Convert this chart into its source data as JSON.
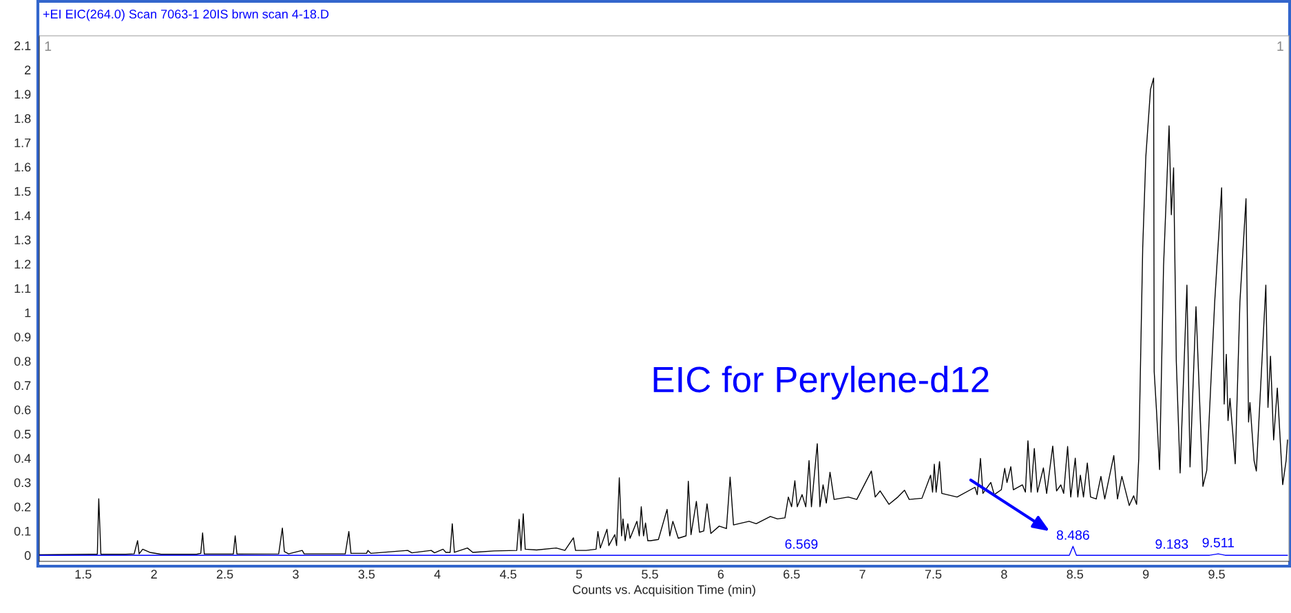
{
  "chart_data": {
    "type": "line",
    "title": "+EI EIC(264.0) Scan 7063-1 20IS brwn scan 4-18.D",
    "xlabel": "Counts vs. Acquisition Time (min)",
    "xlim": [
      1.19,
      10.01
    ],
    "xticks": [
      1.5,
      2,
      2.5,
      3,
      3.5,
      4,
      4.5,
      5,
      5.5,
      6,
      6.5,
      7,
      7.5,
      8,
      8.5,
      9,
      9.5
    ],
    "ylim": [
      -0.025,
      2.14
    ],
    "yticks": [
      0,
      0.1,
      0.2,
      0.3,
      0.4,
      0.5,
      0.6,
      0.7,
      0.8,
      0.9,
      1,
      1.1,
      1.2,
      1.3,
      1.4,
      1.5,
      1.6,
      1.7,
      1.8,
      1.9,
      2,
      2.1
    ],
    "grid": false,
    "legend": false,
    "marker": "none",
    "line_style": "solid",
    "series": [
      {
        "color": "#000000",
        "x": [
          1.19,
          1.55,
          1.6,
          1.61,
          1.625,
          1.8,
          1.86,
          1.884,
          1.895,
          1.92,
          1.97,
          2.05,
          2.3,
          2.33,
          2.343,
          2.355,
          2.56,
          2.573,
          2.585,
          2.88,
          2.906,
          2.92,
          2.95,
          3.046,
          3.06,
          3.35,
          3.375,
          3.39,
          3.5,
          3.51,
          3.53,
          3.79,
          3.82,
          3.956,
          3.98,
          4.04,
          4.06,
          4.09,
          4.105,
          4.12,
          4.212,
          4.25,
          4.4,
          4.56,
          4.577,
          4.59,
          4.606,
          4.62,
          4.7,
          4.839,
          4.9,
          4.96,
          4.975,
          5.05,
          5.12,
          5.133,
          5.15,
          5.197,
          5.21,
          5.252,
          5.265,
          5.284,
          5.3,
          5.31,
          5.325,
          5.344,
          5.36,
          5.408,
          5.425,
          5.439,
          5.455,
          5.469,
          5.485,
          5.505,
          5.56,
          5.621,
          5.64,
          5.662,
          5.7,
          5.755,
          5.771,
          5.79,
          5.828,
          5.85,
          5.88,
          5.903,
          5.93,
          5.989,
          6.04,
          6.066,
          6.09,
          6.2,
          6.25,
          6.35,
          6.4,
          6.453,
          6.477,
          6.5,
          6.523,
          6.54,
          6.574,
          6.6,
          6.623,
          6.64,
          6.681,
          6.7,
          6.722,
          6.745,
          6.771,
          6.8,
          6.9,
          6.96,
          7.063,
          7.09,
          7.125,
          7.187,
          7.25,
          7.297,
          7.33,
          7.42,
          7.481,
          7.495,
          7.507,
          7.52,
          7.544,
          7.56,
          7.668,
          7.794,
          7.81,
          7.833,
          7.85,
          7.906,
          7.93,
          7.98,
          8.004,
          8.02,
          8.047,
          8.065,
          8.129,
          8.15,
          8.168,
          8.19,
          8.213,
          8.235,
          8.277,
          8.3,
          8.343,
          8.37,
          8.4,
          8.42,
          8.448,
          8.47,
          8.502,
          8.52,
          8.538,
          8.56,
          8.587,
          8.61,
          8.65,
          8.683,
          8.71,
          8.774,
          8.8,
          8.831,
          8.883,
          8.914,
          8.935,
          8.95,
          8.978,
          9.0,
          9.033,
          9.055,
          9.059,
          9.075,
          9.097,
          9.125,
          9.164,
          9.18,
          9.196,
          9.215,
          9.242,
          9.29,
          9.312,
          9.354,
          9.403,
          9.43,
          9.486,
          9.535,
          9.553,
          9.568,
          9.58,
          9.594,
          9.631,
          9.664,
          9.707,
          9.725,
          9.735,
          9.764,
          9.78,
          9.847,
          9.862,
          9.88,
          9.902,
          9.928,
          9.966,
          9.99,
          10.0
        ],
        "values": [
          0.002,
          0.004,
          0.004,
          0.233,
          0.004,
          0.004,
          0.006,
          0.06,
          0.006,
          0.025,
          0.012,
          0.004,
          0.004,
          0.008,
          0.092,
          0.005,
          0.005,
          0.08,
          0.005,
          0.006,
          0.112,
          0.015,
          0.006,
          0.02,
          0.006,
          0.006,
          0.098,
          0.008,
          0.008,
          0.02,
          0.008,
          0.02,
          0.01,
          0.02,
          0.01,
          0.025,
          0.012,
          0.012,
          0.13,
          0.012,
          0.03,
          0.012,
          0.018,
          0.02,
          0.148,
          0.02,
          0.171,
          0.025,
          0.022,
          0.03,
          0.02,
          0.072,
          0.02,
          0.02,
          0.025,
          0.098,
          0.03,
          0.107,
          0.04,
          0.085,
          0.04,
          0.319,
          0.08,
          0.15,
          0.06,
          0.13,
          0.07,
          0.14,
          0.08,
          0.2,
          0.08,
          0.133,
          0.06,
          0.06,
          0.065,
          0.189,
          0.08,
          0.14,
          0.07,
          0.08,
          0.305,
          0.085,
          0.222,
          0.095,
          0.1,
          0.212,
          0.09,
          0.12,
          0.11,
          0.322,
          0.125,
          0.14,
          0.13,
          0.16,
          0.15,
          0.154,
          0.24,
          0.2,
          0.307,
          0.2,
          0.25,
          0.2,
          0.39,
          0.2,
          0.46,
          0.2,
          0.29,
          0.215,
          0.342,
          0.23,
          0.24,
          0.23,
          0.347,
          0.24,
          0.265,
          0.21,
          0.24,
          0.268,
          0.23,
          0.235,
          0.33,
          0.26,
          0.375,
          0.26,
          0.386,
          0.255,
          0.24,
          0.28,
          0.25,
          0.399,
          0.255,
          0.3,
          0.25,
          0.27,
          0.358,
          0.3,
          0.365,
          0.27,
          0.29,
          0.26,
          0.472,
          0.26,
          0.44,
          0.26,
          0.36,
          0.255,
          0.45,
          0.265,
          0.29,
          0.255,
          0.448,
          0.24,
          0.4,
          0.24,
          0.33,
          0.24,
          0.38,
          0.24,
          0.232,
          0.325,
          0.232,
          0.411,
          0.232,
          0.325,
          0.205,
          0.245,
          0.21,
          0.4,
          1.267,
          1.642,
          1.919,
          1.966,
          0.757,
          0.6,
          0.353,
          1.19,
          1.769,
          1.403,
          1.596,
          0.8,
          0.339,
          1.113,
          0.364,
          1.024,
          0.284,
          0.35,
          1.043,
          1.514,
          0.623,
          0.828,
          0.555,
          0.646,
          0.377,
          1.043,
          1.469,
          0.549,
          0.629,
          0.39,
          0.347,
          1.113,
          0.609,
          0.82,
          0.475,
          0.689,
          0.291,
          0.39,
          0.475
        ]
      },
      {
        "color": "#0000ff",
        "x": [
          1.19,
          8.46,
          8.486,
          8.51,
          9.45,
          9.511,
          9.56,
          10.0
        ],
        "values": [
          0,
          0,
          0.037,
          0,
          0,
          0.006,
          0,
          0
        ]
      }
    ],
    "annotations": [
      "EIC for Perylene-d12",
      {
        "text": "6.569",
        "x": 6.569,
        "y": 0
      },
      {
        "text": "8.486",
        "x": 8.486,
        "y": 0.037
      },
      {
        "text": "9.183",
        "x": 9.183,
        "y": 0
      },
      {
        "text": "9.511",
        "x": 9.511,
        "y": 0.006
      },
      "1",
      "1"
    ]
  }
}
